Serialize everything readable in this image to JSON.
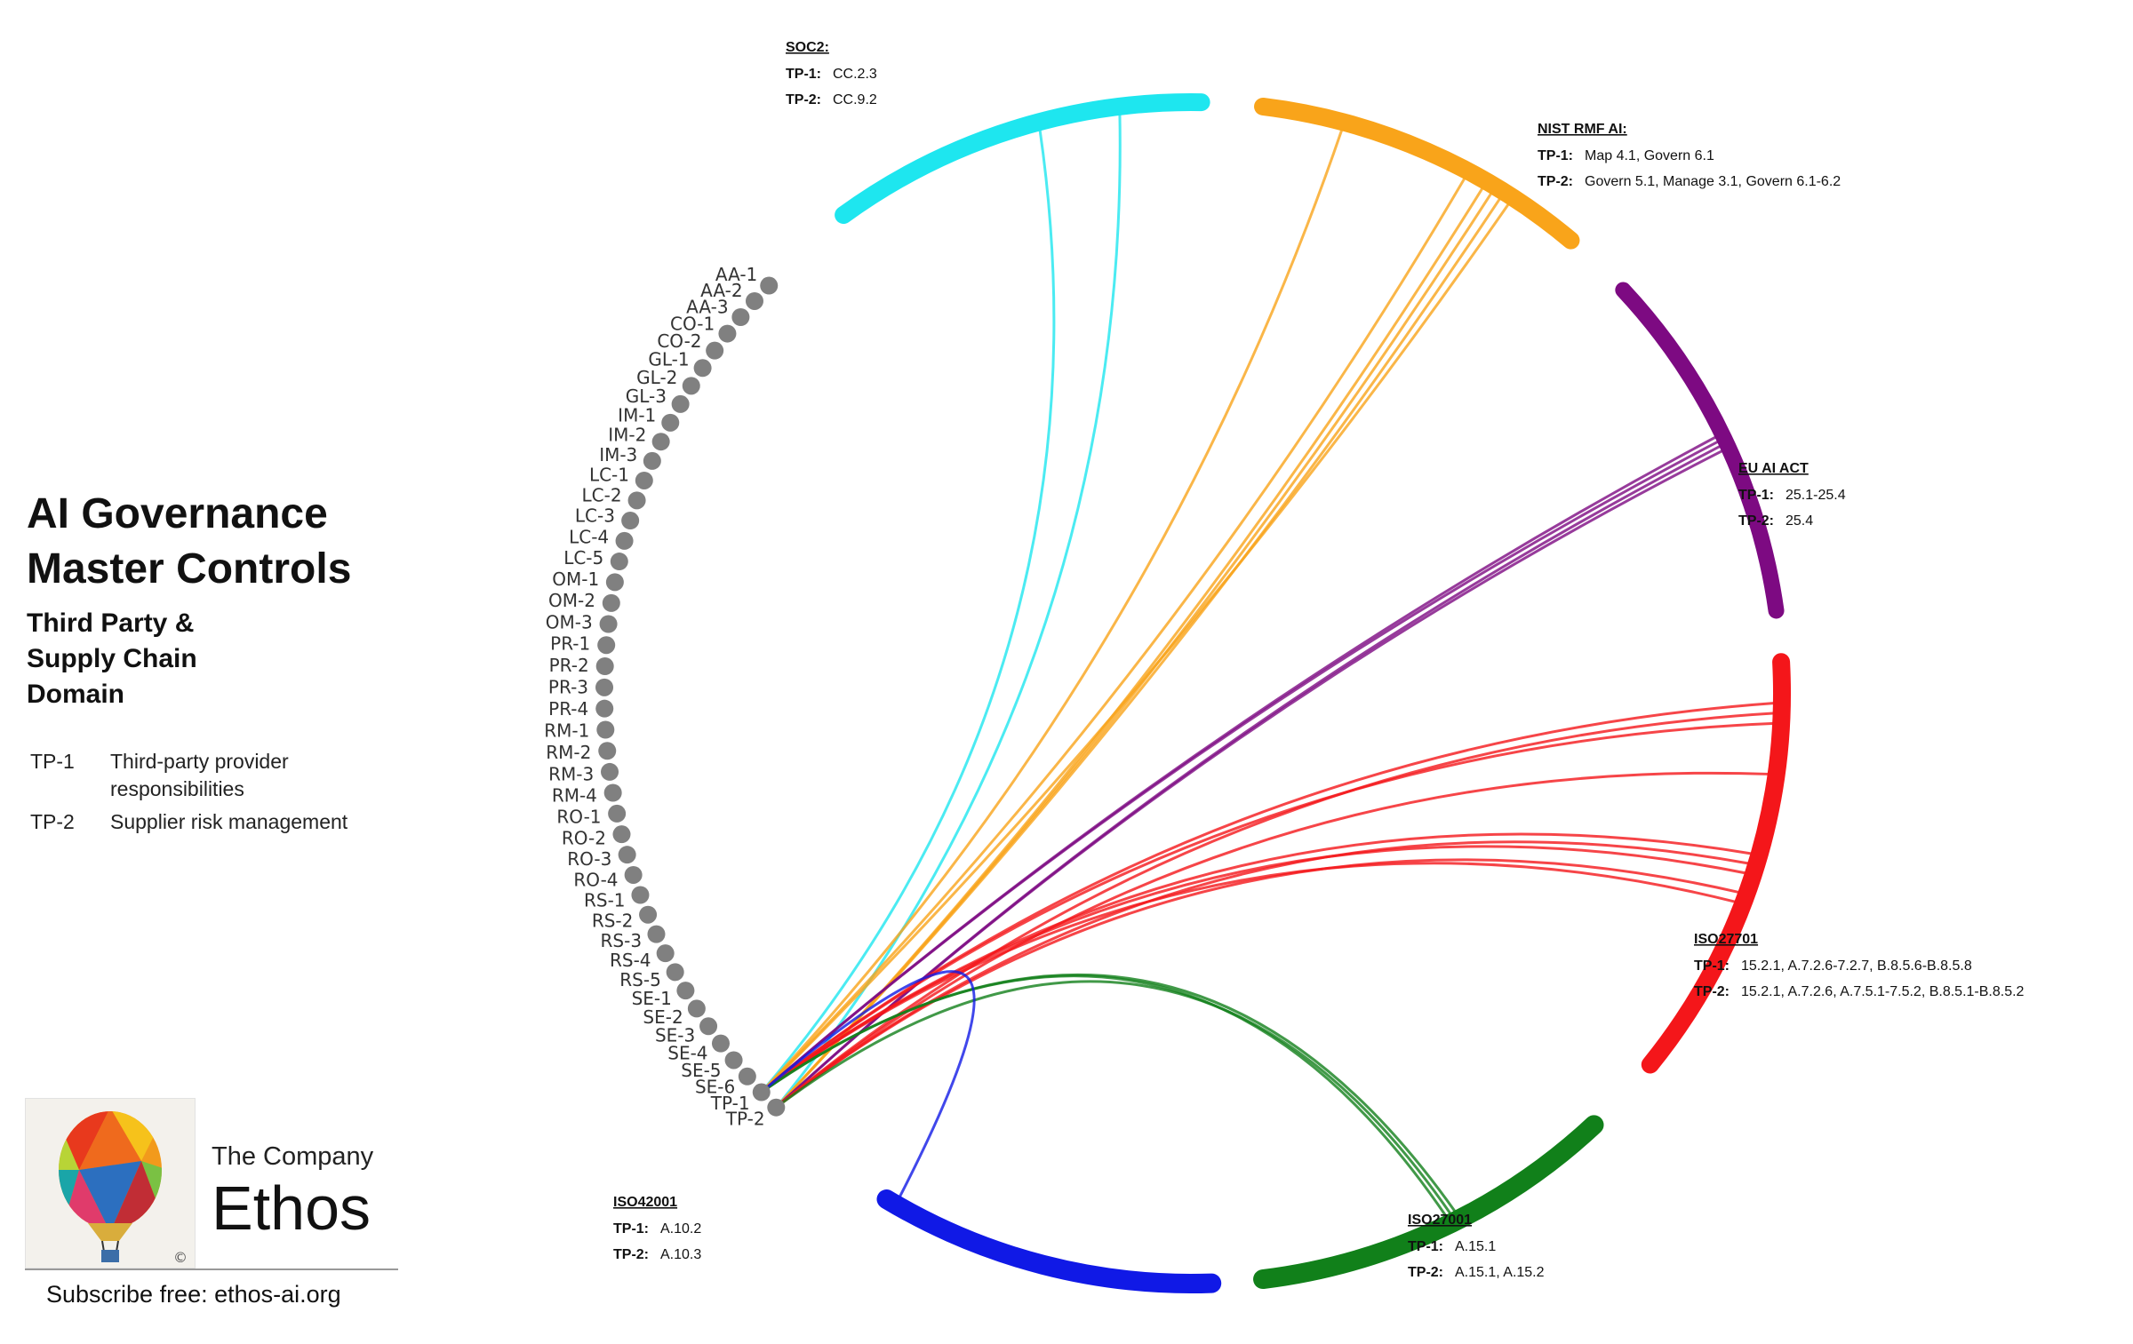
{
  "title_lines": [
    "AI Governance",
    "Master Controls"
  ],
  "subtitle_lines": [
    "Third Party &",
    "Supply Chain",
    "Domain"
  ],
  "legend": [
    {
      "code": "TP-1",
      "desc": "Third-party provider responsibilities"
    },
    {
      "code": "TP-2",
      "desc": "Supplier risk management"
    }
  ],
  "branding": {
    "company_prefix": "The Company",
    "company_name": "Ethos",
    "subscribe": "Subscribe free: ethos-ai.org",
    "copyright_symbol": "©"
  },
  "controls": [
    "AA-1",
    "AA-2",
    "AA-3",
    "CO-1",
    "CO-2",
    "GL-1",
    "GL-2",
    "GL-3",
    "IM-1",
    "IM-2",
    "IM-3",
    "LC-1",
    "LC-2",
    "LC-3",
    "LC-4",
    "LC-5",
    "OM-1",
    "OM-2",
    "OM-3",
    "PR-1",
    "PR-2",
    "PR-3",
    "PR-4",
    "RM-1",
    "RM-2",
    "RM-3",
    "RM-4",
    "RO-1",
    "RO-2",
    "RO-3",
    "RO-4",
    "RS-1",
    "RS-2",
    "RS-3",
    "RS-4",
    "RS-5",
    "SE-1",
    "SE-2",
    "SE-3",
    "SE-4",
    "SE-5",
    "SE-6",
    "TP-1",
    "TP-2"
  ],
  "frameworks": [
    {
      "id": "soc2",
      "name": "SOC2:",
      "color": "#1ee6ef",
      "tp1_label": "TP-1:",
      "tp1": "CC.2.3",
      "tp2_label": "TP-2:",
      "tp2": "CC.9.2"
    },
    {
      "id": "nist",
      "name": "NIST RMF AI:",
      "color": "#f9a41a",
      "tp1_label": "TP-1:",
      "tp1": "Map 4.1, Govern 6.1",
      "tp2_label": "TP-2:",
      "tp2": "Govern 5.1, Manage 3.1, Govern 6.1-6.2"
    },
    {
      "id": "euai",
      "name": "EU AI ACT",
      "color": "#7d0a82",
      "tp1_label": "TP-1:",
      "tp1": "25.1-25.4",
      "tp2_label": "TP-2:",
      "tp2": "25.4"
    },
    {
      "id": "iso27701",
      "name": "ISO27701",
      "color": "#f4161a",
      "tp1_label": "TP-1:",
      "tp1": "15.2.1, A.7.2.6-7.2.7, B.8.5.6-B.8.5.8",
      "tp2_label": "TP-2:",
      "tp2": "15.2.1, A.7.2.6, A.7.5.1-7.5.2, B.8.5.1-B.8.5.2"
    },
    {
      "id": "iso27001",
      "name": "ISO27001",
      "color": "#11801a",
      "tp1_label": "TP-1:",
      "tp1": "A.15.1",
      "tp2_label": "TP-2:",
      "tp2": "A.15.1,  A.15.2"
    },
    {
      "id": "iso42001",
      "name": "ISO42001",
      "color": "#1019e6",
      "tp1_label": "TP-1:",
      "tp1": "A.10.2",
      "tp2_label": "TP-2:",
      "tp2": "A.10.3"
    }
  ],
  "colors": {
    "control_dot": "#808080"
  }
}
